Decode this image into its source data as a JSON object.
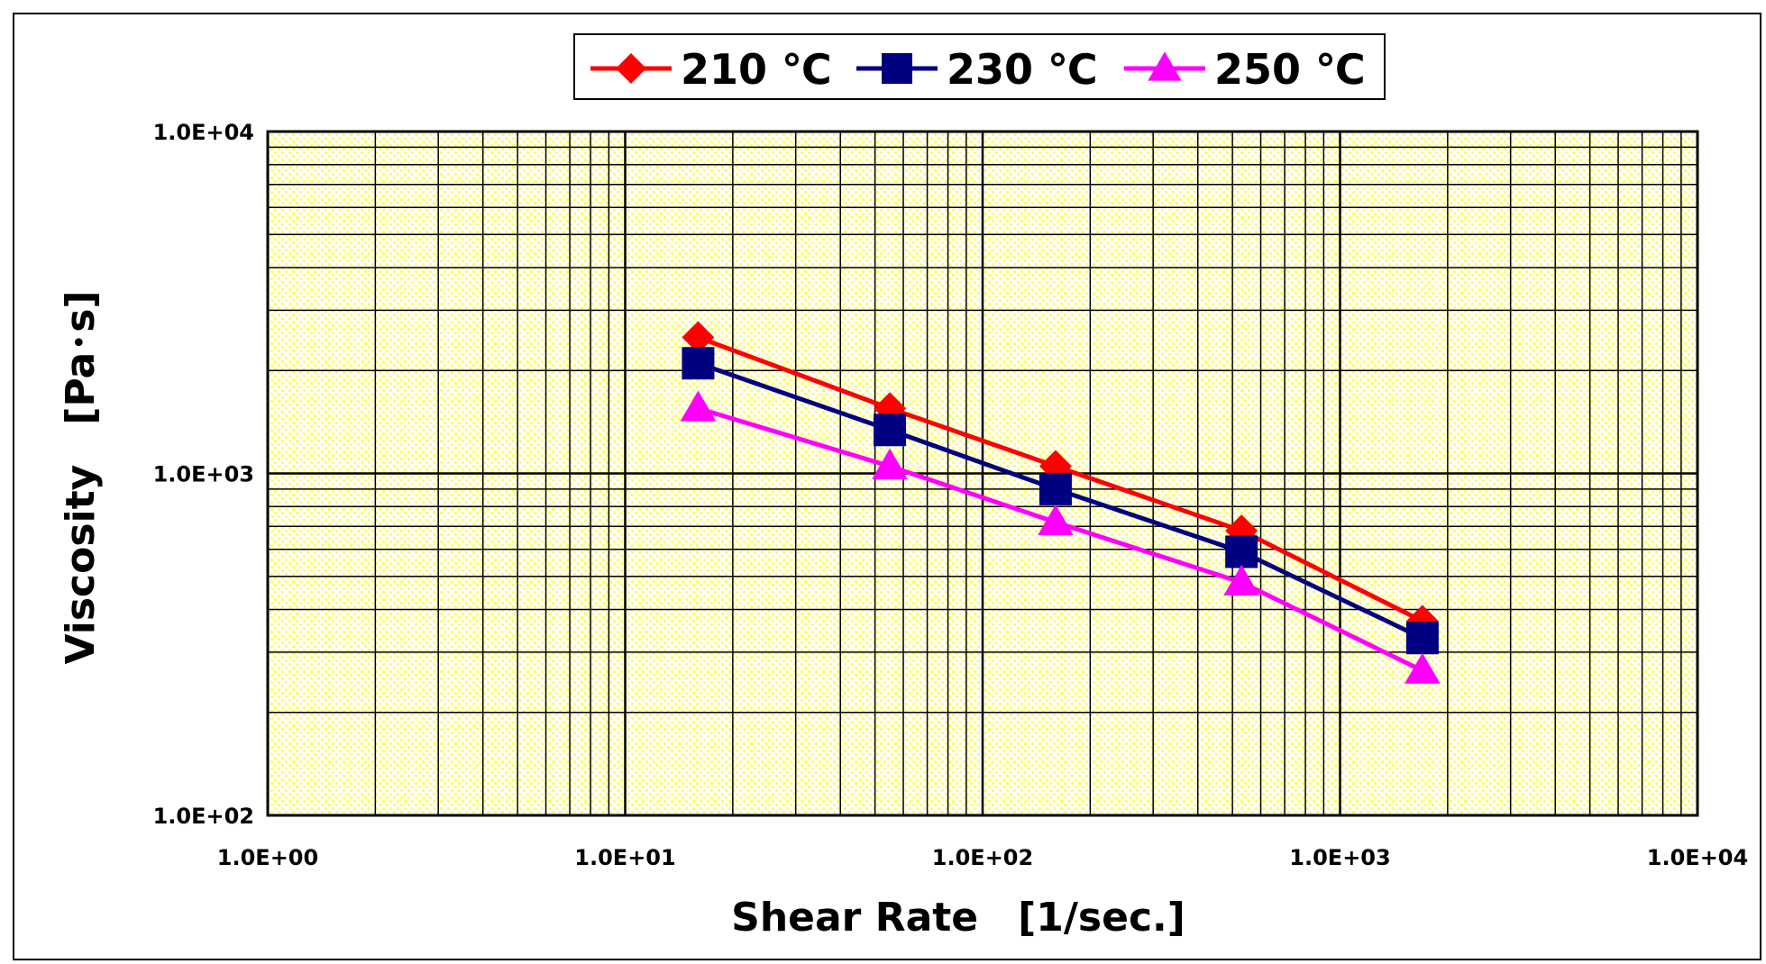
{
  "chart_data": {
    "type": "line",
    "xscale": "log",
    "yscale": "log",
    "xlim": [
      1,
      10000
    ],
    "ylim": [
      100,
      10000
    ],
    "xlabel": "Shear Rate　[1/sec.]",
    "ylabel": "Viscosity　[Pa･s]",
    "x_tick_labels": [
      "1.0E+00",
      "1.0E+01",
      "1.0E+02",
      "1.0E+03",
      "1.0E+04"
    ],
    "x_tick_values": [
      1,
      10,
      100,
      1000,
      10000
    ],
    "y_tick_labels": [
      "1.0E+02",
      "1.0E+03",
      "1.0E+04"
    ],
    "y_tick_values": [
      100,
      1000,
      10000
    ],
    "grid": true,
    "legend_position": "top-center",
    "series": [
      {
        "name": "210 ℃",
        "color": "#ff0000",
        "marker": "diamond",
        "x": [
          16,
          55,
          160,
          530,
          1700
        ],
        "y": [
          2500,
          1550,
          1050,
          680,
          370
        ]
      },
      {
        "name": "230 ℃",
        "color": "#000080",
        "marker": "square",
        "x": [
          16,
          55,
          160,
          530,
          1700
        ],
        "y": [
          2100,
          1340,
          900,
          590,
          330
        ]
      },
      {
        "name": "250 ℃",
        "color": "#ff00ff",
        "marker": "triangle",
        "x": [
          16,
          55,
          160,
          530,
          1700
        ],
        "y": [
          1550,
          1050,
          720,
          480,
          265
        ]
      }
    ]
  },
  "colors": {
    "plot_background": "#ffff99",
    "grid": "#000000"
  }
}
